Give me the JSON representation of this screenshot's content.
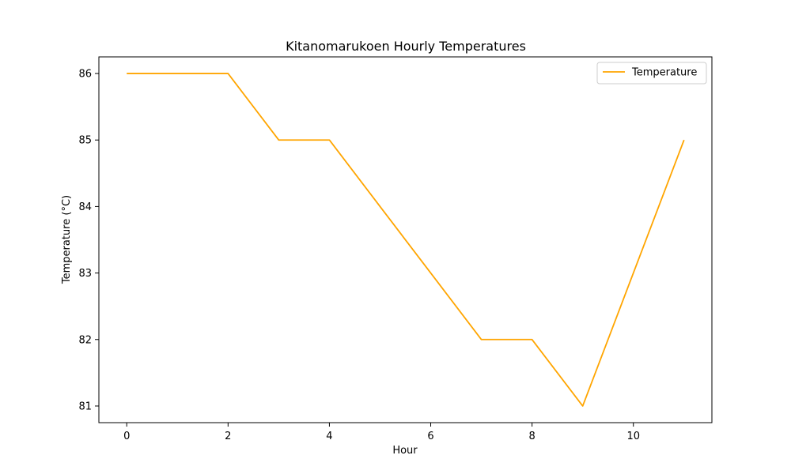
{
  "chart_data": {
    "type": "line",
    "title": "Kitanomarukoen Hourly Temperatures",
    "xlabel": "Hour",
    "ylabel": "Temperature (°C)",
    "x": [
      0,
      1,
      2,
      3,
      4,
      5,
      6,
      7,
      8,
      9,
      10,
      11
    ],
    "xlim": [
      -0.55,
      11.55
    ],
    "ylim": [
      80.75,
      86.25
    ],
    "xticks": [
      0,
      2,
      4,
      6,
      8,
      10
    ],
    "yticks": [
      81,
      82,
      83,
      84,
      85,
      86
    ],
    "grid": false,
    "legend_position": "top-right",
    "series": [
      {
        "name": "Temperature",
        "color": "#ffa500",
        "values": [
          86,
          86,
          86,
          85,
          85,
          84,
          83,
          82,
          82,
          81,
          83,
          85
        ]
      }
    ]
  }
}
